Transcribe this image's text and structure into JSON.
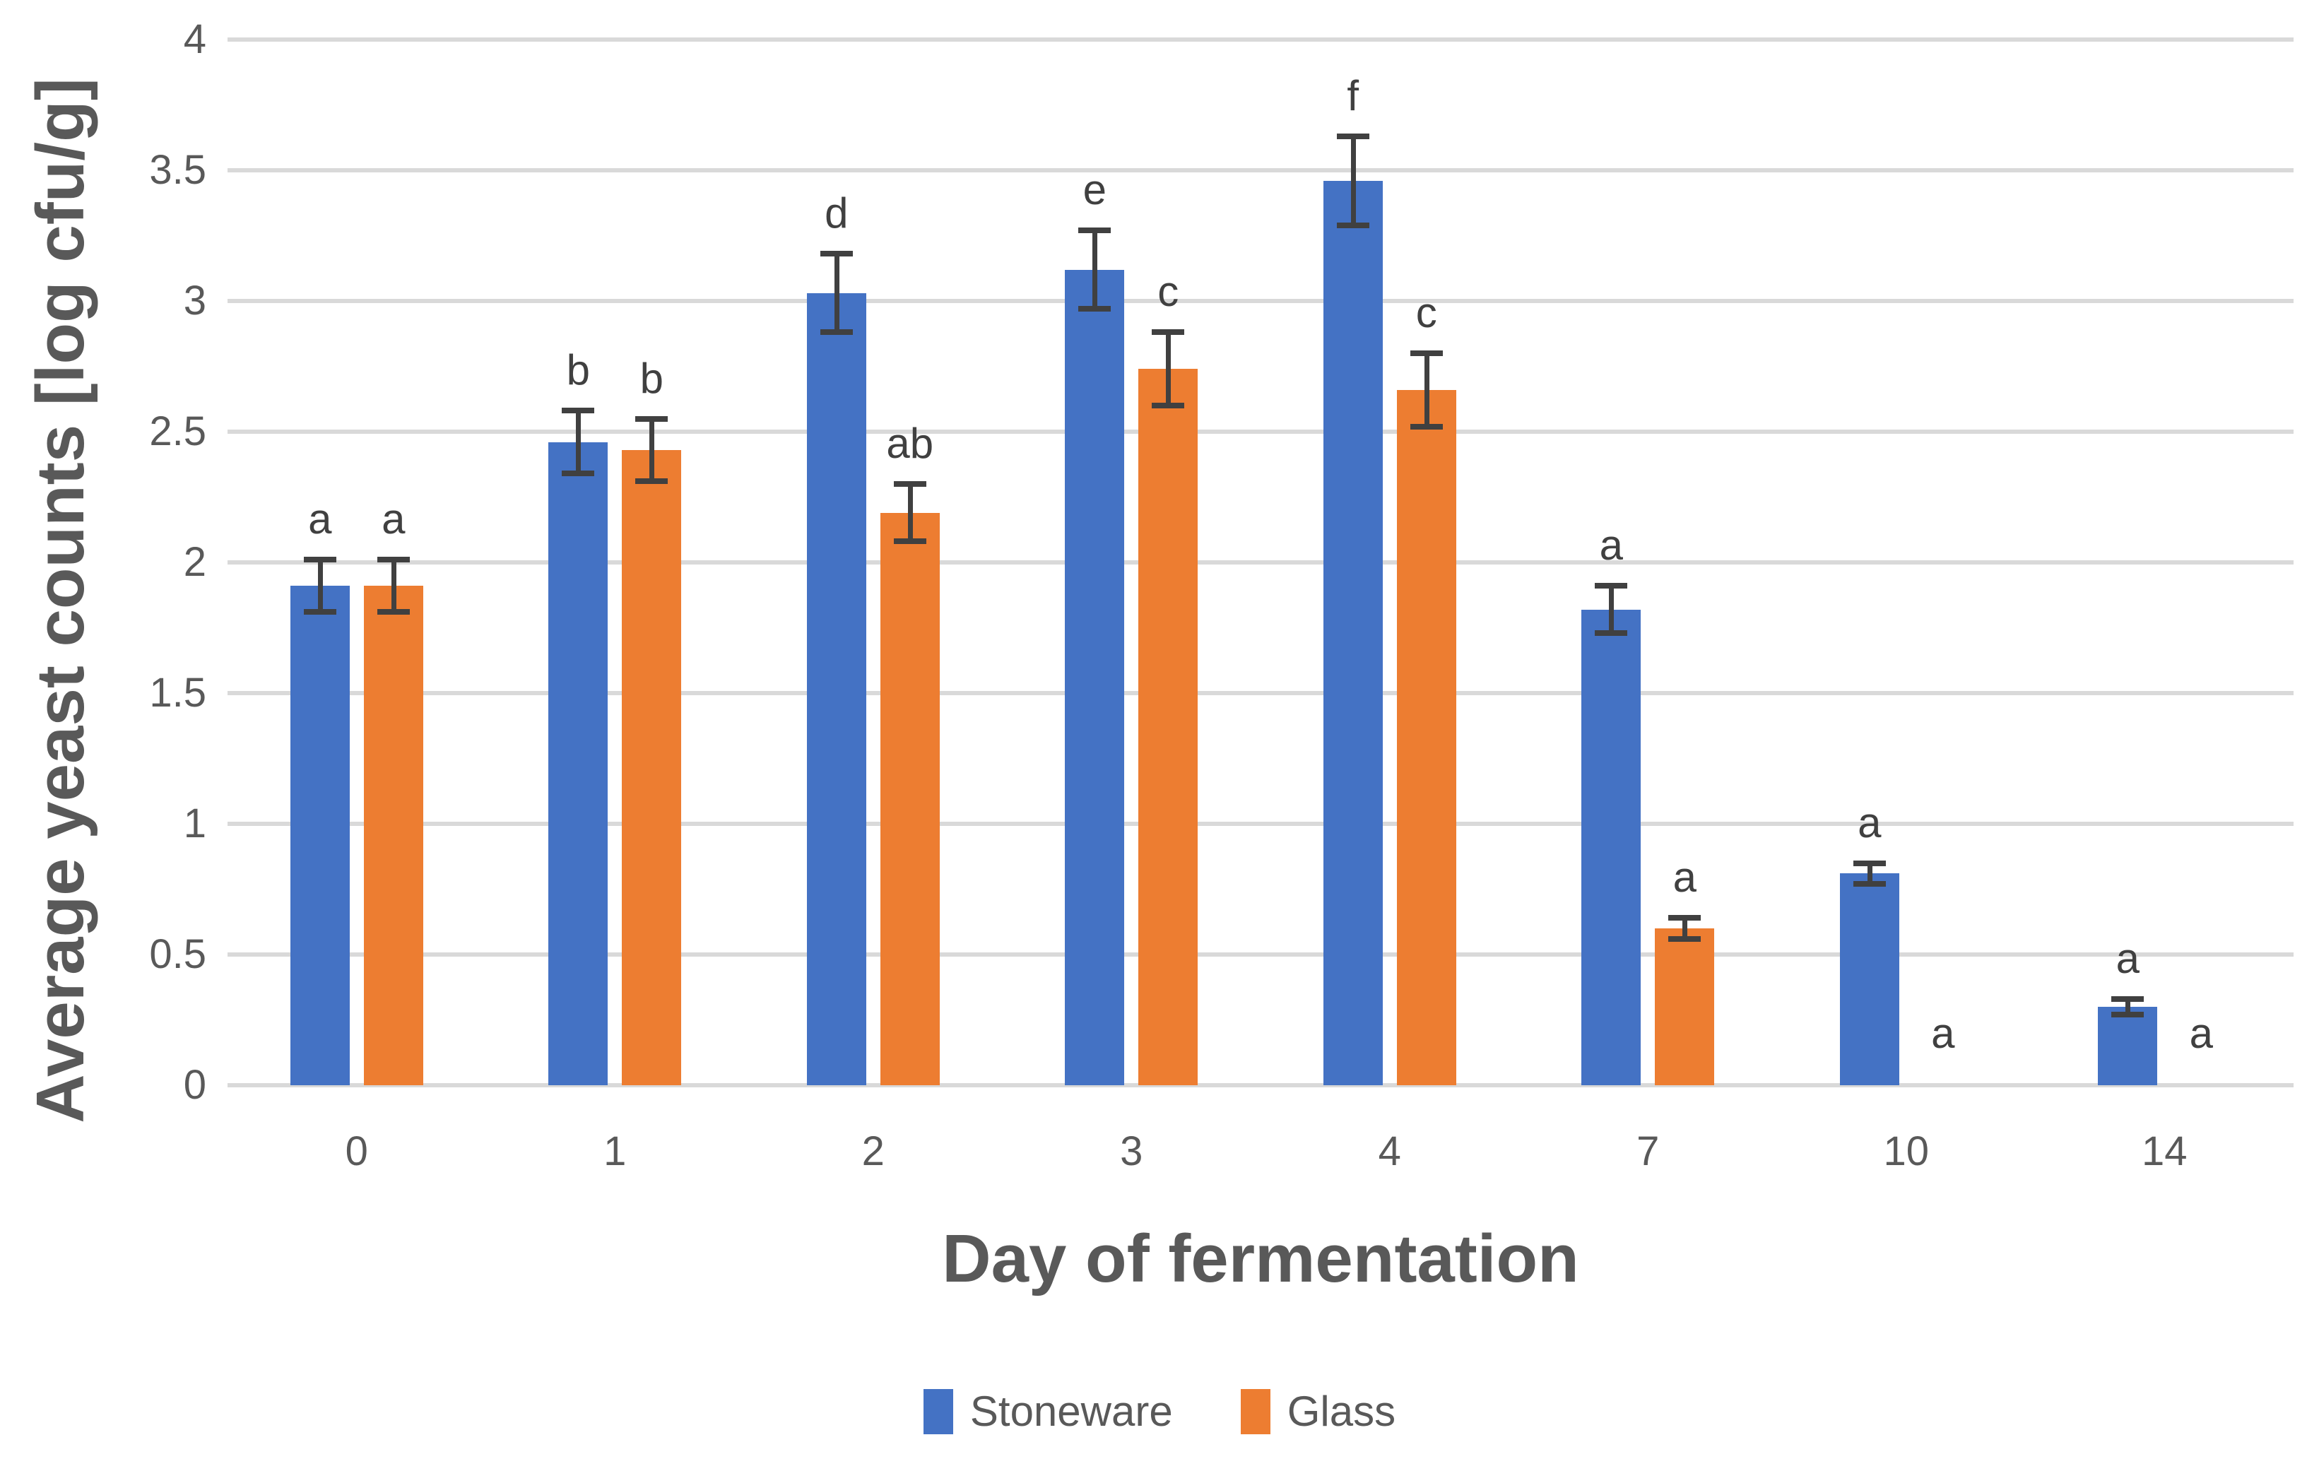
{
  "chart_data": {
    "type": "bar",
    "title": "",
    "xlabel": "Day of fermentation",
    "ylabel": "Average yeast counts [log cfu/g]",
    "categories": [
      "0",
      "1",
      "2",
      "3",
      "4",
      "7",
      "10",
      "14"
    ],
    "yticks": [
      "0",
      "0.5",
      "1",
      "1.5",
      "2",
      "2.5",
      "3",
      "3.5",
      "4"
    ],
    "ylim": [
      0,
      4
    ],
    "grid": true,
    "legend_position": "bottom",
    "series": [
      {
        "name": "Stoneware",
        "color": "#4472C4",
        "values": [
          1.91,
          2.46,
          3.03,
          3.12,
          3.46,
          1.82,
          0.81,
          0.3
        ],
        "errors": [
          0.1,
          0.12,
          0.15,
          0.15,
          0.17,
          0.09,
          0.04,
          0.03
        ],
        "letters": [
          "a",
          "b",
          "d",
          "e",
          "f",
          "a",
          "a",
          "a"
        ]
      },
      {
        "name": "Glass",
        "color": "#ED7D31",
        "values": [
          1.91,
          2.43,
          2.19,
          2.74,
          2.66,
          0.6,
          0,
          0
        ],
        "errors": [
          0.1,
          0.12,
          0.11,
          0.14,
          0.14,
          0.04,
          0,
          0
        ],
        "letters": [
          "a",
          "b",
          "ab",
          "c",
          "c",
          "a",
          "a",
          "a"
        ]
      }
    ]
  },
  "colors": {
    "gridline": "#d9d9d9",
    "axis_text": "#595959",
    "error_bar": "#404040",
    "background": "#ffffff"
  }
}
